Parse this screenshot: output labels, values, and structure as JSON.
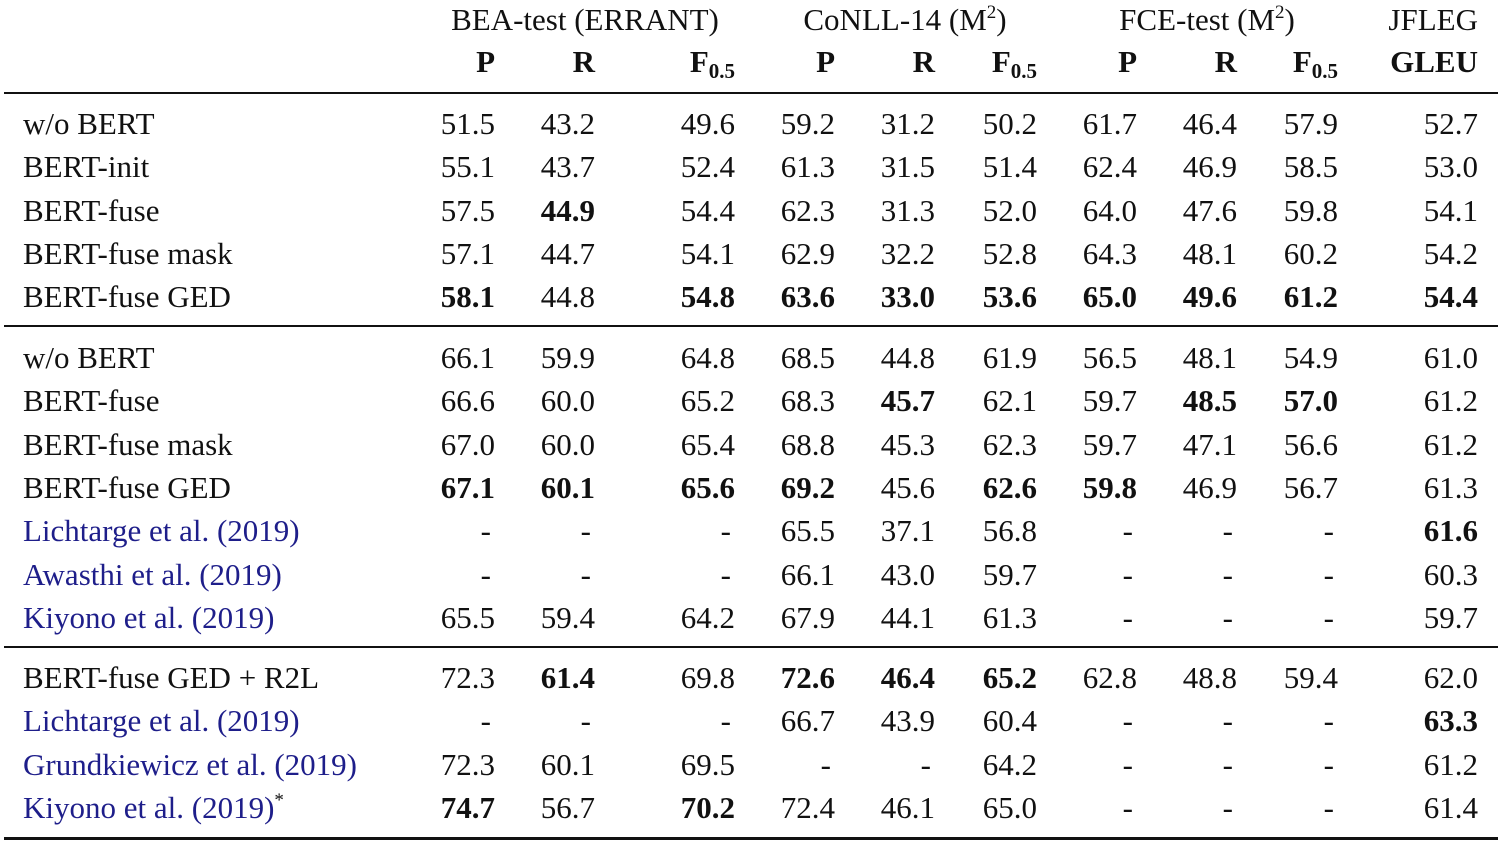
{
  "header": {
    "groups": [
      {
        "label": "BEA-test (ERRANT)",
        "sup": ""
      },
      {
        "label": "CoNLL-14 (M",
        "sup": "2",
        "close": ")"
      },
      {
        "label": "FCE-test (M",
        "sup": "2",
        "close": ")"
      },
      {
        "label": "JFLEG",
        "sup": ""
      }
    ],
    "metrics": [
      "P",
      "R",
      "F",
      "P",
      "R",
      "F",
      "P",
      "R",
      "F",
      "GLEU"
    ],
    "metric_sub": "0.5"
  },
  "sections": [
    {
      "rows": [
        {
          "label": "w/o BERT",
          "cite": false,
          "note": "",
          "cells": [
            "51.5",
            "43.2",
            "49.6",
            "59.2",
            "31.2",
            "50.2",
            "61.7",
            "46.4",
            "57.9",
            "52.7"
          ],
          "bold": []
        },
        {
          "label": "BERT-init",
          "cite": false,
          "note": "",
          "cells": [
            "55.1",
            "43.7",
            "52.4",
            "61.3",
            "31.5",
            "51.4",
            "62.4",
            "46.9",
            "58.5",
            "53.0"
          ],
          "bold": []
        },
        {
          "label": "BERT-fuse",
          "cite": false,
          "note": "",
          "cells": [
            "57.5",
            "44.9",
            "54.4",
            "62.3",
            "31.3",
            "52.0",
            "64.0",
            "47.6",
            "59.8",
            "54.1"
          ],
          "bold": [
            1
          ]
        },
        {
          "label": "BERT-fuse mask",
          "cite": false,
          "note": "",
          "cells": [
            "57.1",
            "44.7",
            "54.1",
            "62.9",
            "32.2",
            "52.8",
            "64.3",
            "48.1",
            "60.2",
            "54.2"
          ],
          "bold": []
        },
        {
          "label": "BERT-fuse GED",
          "cite": false,
          "note": "",
          "cells": [
            "58.1",
            "44.8",
            "54.8",
            "63.6",
            "33.0",
            "53.6",
            "65.0",
            "49.6",
            "61.2",
            "54.4"
          ],
          "bold": [
            0,
            2,
            3,
            4,
            5,
            6,
            7,
            8,
            9
          ]
        }
      ]
    },
    {
      "rows": [
        {
          "label": "w/o BERT",
          "cite": false,
          "note": "",
          "cells": [
            "66.1",
            "59.9",
            "64.8",
            "68.5",
            "44.8",
            "61.9",
            "56.5",
            "48.1",
            "54.9",
            "61.0"
          ],
          "bold": []
        },
        {
          "label": "BERT-fuse",
          "cite": false,
          "note": "",
          "cells": [
            "66.6",
            "60.0",
            "65.2",
            "68.3",
            "45.7",
            "62.1",
            "59.7",
            "48.5",
            "57.0",
            "61.2"
          ],
          "bold": [
            4,
            7,
            8
          ]
        },
        {
          "label": "BERT-fuse mask",
          "cite": false,
          "note": "",
          "cells": [
            "67.0",
            "60.0",
            "65.4",
            "68.8",
            "45.3",
            "62.3",
            "59.7",
            "47.1",
            "56.6",
            "61.2"
          ],
          "bold": []
        },
        {
          "label": "BERT-fuse GED",
          "cite": false,
          "note": "",
          "cells": [
            "67.1",
            "60.1",
            "65.6",
            "69.2",
            "45.6",
            "62.6",
            "59.8",
            "46.9",
            "56.7",
            "61.3"
          ],
          "bold": [
            0,
            1,
            2,
            3,
            5,
            6
          ]
        },
        {
          "label": "Lichtarge et al. (2019)",
          "cite": true,
          "note": "",
          "cells": [
            "-",
            "-",
            "-",
            "65.5",
            "37.1",
            "56.8",
            "-",
            "-",
            "-",
            "61.6"
          ],
          "bold": [
            9
          ]
        },
        {
          "label": "Awasthi et al. (2019)",
          "cite": true,
          "note": "",
          "cells": [
            "-",
            "-",
            "-",
            "66.1",
            "43.0",
            "59.7",
            "-",
            "-",
            "-",
            "60.3"
          ],
          "bold": []
        },
        {
          "label": "Kiyono et al. (2019)",
          "cite": true,
          "note": "",
          "cells": [
            "65.5",
            "59.4",
            "64.2",
            "67.9",
            "44.1",
            "61.3",
            "-",
            "-",
            "-",
            "59.7"
          ],
          "bold": []
        }
      ]
    },
    {
      "rows": [
        {
          "label": "BERT-fuse GED + R2L",
          "cite": false,
          "note": "",
          "cells": [
            "72.3",
            "61.4",
            "69.8",
            "72.6",
            "46.4",
            "65.2",
            "62.8",
            "48.8",
            "59.4",
            "62.0"
          ],
          "bold": [
            1,
            3,
            4,
            5
          ]
        },
        {
          "label": "Lichtarge et al. (2019)",
          "cite": true,
          "note": "",
          "cells": [
            "-",
            "-",
            "-",
            "66.7",
            "43.9",
            "60.4",
            "-",
            "-",
            "-",
            "63.3"
          ],
          "bold": [
            9
          ]
        },
        {
          "label": "Grundkiewicz et al. (2019)",
          "cite": true,
          "note": "",
          "cells": [
            "72.3",
            "60.1",
            "69.5",
            "-",
            "-",
            "64.2",
            "-",
            "-",
            "-",
            "61.2"
          ],
          "bold": []
        },
        {
          "label": "Kiyono et al. (2019)",
          "cite": true,
          "note": "*",
          "cells": [
            "74.7",
            "56.7",
            "70.2",
            "72.4",
            "46.1",
            "65.0",
            "-",
            "-",
            "-",
            "61.4"
          ],
          "bold": [
            0,
            2
          ]
        }
      ]
    }
  ]
}
